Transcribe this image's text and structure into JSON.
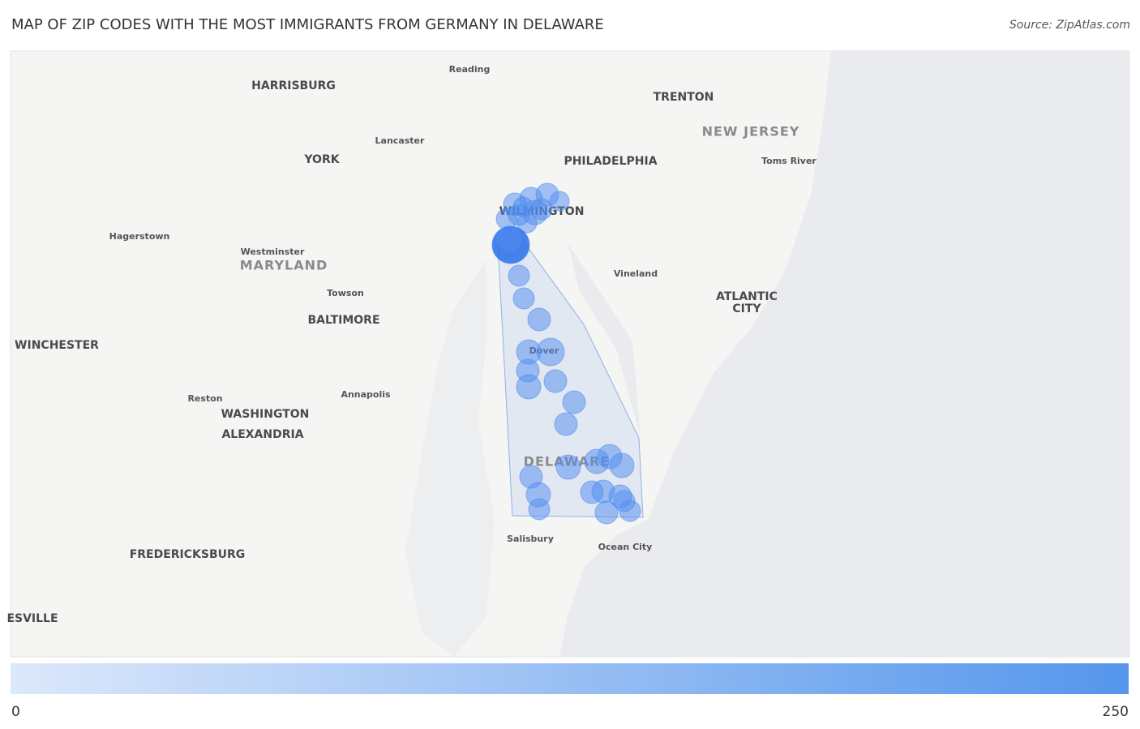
{
  "title": "MAP OF ZIP CODES WITH THE MOST IMMIGRANTS FROM GERMANY IN DELAWARE",
  "source": "Source: ZipAtlas.com",
  "places": [
    "Reading",
    "HARRISBURG",
    "TRENTON",
    "NEW JERSEY",
    "Lancaster",
    "YORK",
    "PHILADELPHIA",
    "Toms River",
    "WILMINGTON",
    "Hagerstown",
    "Westminster",
    "MARYLAND",
    "Vineland",
    "Towson",
    "ATLANTIC",
    "CITY",
    "BALTIMORE",
    "WINCHESTER",
    "Dover",
    "Reston",
    "Annapolis",
    "WASHINGTON",
    "ALEXANDRIA",
    "DELAWARE",
    "Salisbury",
    "Ocean City",
    "FREDERICKSBURG",
    "ESVILLE"
  ],
  "legend": {
    "min": 0,
    "max": 250
  }
}
